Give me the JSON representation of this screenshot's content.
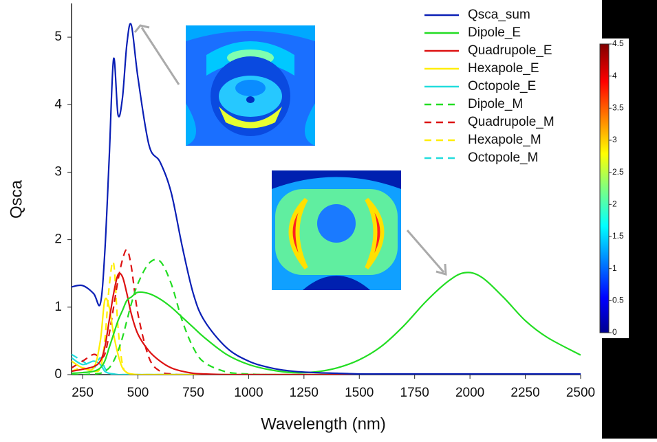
{
  "chart_data": {
    "type": "line",
    "xlabel": "Wavelength (nm)",
    "ylabel": "Qsca",
    "x": [
      200,
      250,
      300,
      330,
      350,
      370,
      390,
      410,
      430,
      450,
      470,
      500,
      550,
      600,
      650,
      700,
      750,
      800,
      900,
      1000,
      1100,
      1200,
      1300,
      1400,
      1500,
      1600,
      1700,
      1800,
      1900,
      1975,
      2050,
      2150,
      2250,
      2350,
      2500
    ],
    "series": [
      {
        "name": "Qsca_sum",
        "color": "#0a1fb5",
        "dash": false,
        "values": [
          1.3,
          1.32,
          1.2,
          1.05,
          1.8,
          3.2,
          4.68,
          3.85,
          4.1,
          4.9,
          5.18,
          4.4,
          3.4,
          3.15,
          2.7,
          1.9,
          1.2,
          0.8,
          0.4,
          0.2,
          0.1,
          0.05,
          0.03,
          0.02,
          0.01,
          0.01,
          0.01,
          0.01,
          0.01,
          0.01,
          0.01,
          0.01,
          0.01,
          0.01,
          0.01
        ]
      },
      {
        "name": "Dipole_E",
        "color": "#22dd22",
        "dash": false,
        "values": [
          0.02,
          0.03,
          0.05,
          0.1,
          0.2,
          0.4,
          0.6,
          0.8,
          0.95,
          1.1,
          1.15,
          1.22,
          1.2,
          1.12,
          1.0,
          0.85,
          0.7,
          0.55,
          0.3,
          0.15,
          0.07,
          0.03,
          0.04,
          0.1,
          0.22,
          0.42,
          0.72,
          1.08,
          1.38,
          1.51,
          1.45,
          1.15,
          0.8,
          0.55,
          0.29
        ]
      },
      {
        "name": "Quadrupole_E",
        "color": "#dd1111",
        "dash": false,
        "values": [
          0.05,
          0.08,
          0.12,
          0.2,
          0.4,
          0.8,
          1.2,
          1.48,
          1.45,
          1.2,
          0.9,
          0.6,
          0.35,
          0.2,
          0.1,
          0.05,
          0.02,
          0.01,
          0,
          0,
          0,
          0,
          0,
          0,
          0,
          0,
          0,
          0,
          0,
          0,
          0,
          0,
          0,
          0,
          0
        ]
      },
      {
        "name": "Hexapole_E",
        "color": "#ffee00",
        "dash": false,
        "values": [
          0.2,
          0.1,
          0.1,
          0.5,
          1.1,
          1.0,
          0.6,
          0.3,
          0.1,
          0.03,
          0.01,
          0,
          0,
          0,
          0,
          0,
          0,
          0,
          0,
          0,
          0,
          0,
          0,
          0,
          0,
          0,
          0,
          0,
          0,
          0,
          0,
          0,
          0,
          0,
          0
        ]
      },
      {
        "name": "Octopole_E",
        "color": "#22dddd",
        "dash": false,
        "values": [
          0.25,
          0.15,
          0.2,
          0.15,
          0.05,
          0.02,
          0.01,
          0,
          0,
          0,
          0,
          0,
          0,
          0,
          0,
          0,
          0,
          0,
          0,
          0,
          0,
          0,
          0,
          0,
          0,
          0,
          0,
          0,
          0,
          0,
          0,
          0,
          0,
          0,
          0
        ]
      },
      {
        "name": "Dipole_M",
        "color": "#22dd22",
        "dash": true,
        "values": [
          0,
          0,
          0.01,
          0.02,
          0.05,
          0.1,
          0.2,
          0.35,
          0.55,
          0.8,
          1.05,
          1.35,
          1.65,
          1.68,
          1.35,
          0.8,
          0.4,
          0.18,
          0.04,
          0.01,
          0,
          0,
          0,
          0,
          0,
          0,
          0,
          0,
          0,
          0,
          0,
          0,
          0,
          0,
          0
        ]
      },
      {
        "name": "Quadrupole_M",
        "color": "#dd1111",
        "dash": true,
        "values": [
          0.1,
          0.2,
          0.3,
          0.25,
          0.3,
          0.6,
          1.0,
          1.4,
          1.7,
          1.85,
          1.6,
          0.9,
          0.25,
          0.05,
          0.01,
          0,
          0,
          0,
          0,
          0,
          0,
          0,
          0,
          0,
          0,
          0,
          0,
          0,
          0,
          0,
          0,
          0,
          0,
          0,
          0
        ]
      },
      {
        "name": "Hexapole_M",
        "color": "#ffee00",
        "dash": true,
        "values": [
          0.05,
          0.1,
          0.05,
          0.1,
          0.5,
          1.3,
          1.65,
          0.7,
          0.15,
          0.03,
          0,
          0,
          0,
          0,
          0,
          0,
          0,
          0,
          0,
          0,
          0,
          0,
          0,
          0,
          0,
          0,
          0,
          0,
          0,
          0,
          0,
          0,
          0,
          0,
          0
        ]
      },
      {
        "name": "Octopole_M",
        "color": "#22dddd",
        "dash": true,
        "values": [
          0.3,
          0.2,
          0.1,
          0.25,
          0.1,
          0.02,
          0,
          0,
          0,
          0,
          0,
          0,
          0,
          0,
          0,
          0,
          0,
          0,
          0,
          0,
          0,
          0,
          0,
          0,
          0,
          0,
          0,
          0,
          0,
          0,
          0,
          0,
          0,
          0,
          0
        ]
      }
    ],
    "xlim": [
      200,
      2500
    ],
    "xticks": [
      250,
      500,
      750,
      1000,
      1250,
      1500,
      1750,
      2000,
      2250,
      2500
    ],
    "ylim": [
      0,
      5.5
    ],
    "yticks": [
      0,
      1,
      2,
      3,
      4,
      5
    ],
    "legend": "upper right",
    "colorbar_lim": [
      0,
      4.5
    ],
    "colorbar_ticks": [
      0,
      0.5,
      1,
      1.5,
      2,
      2.5,
      3,
      3.5,
      4,
      4.5
    ]
  }
}
